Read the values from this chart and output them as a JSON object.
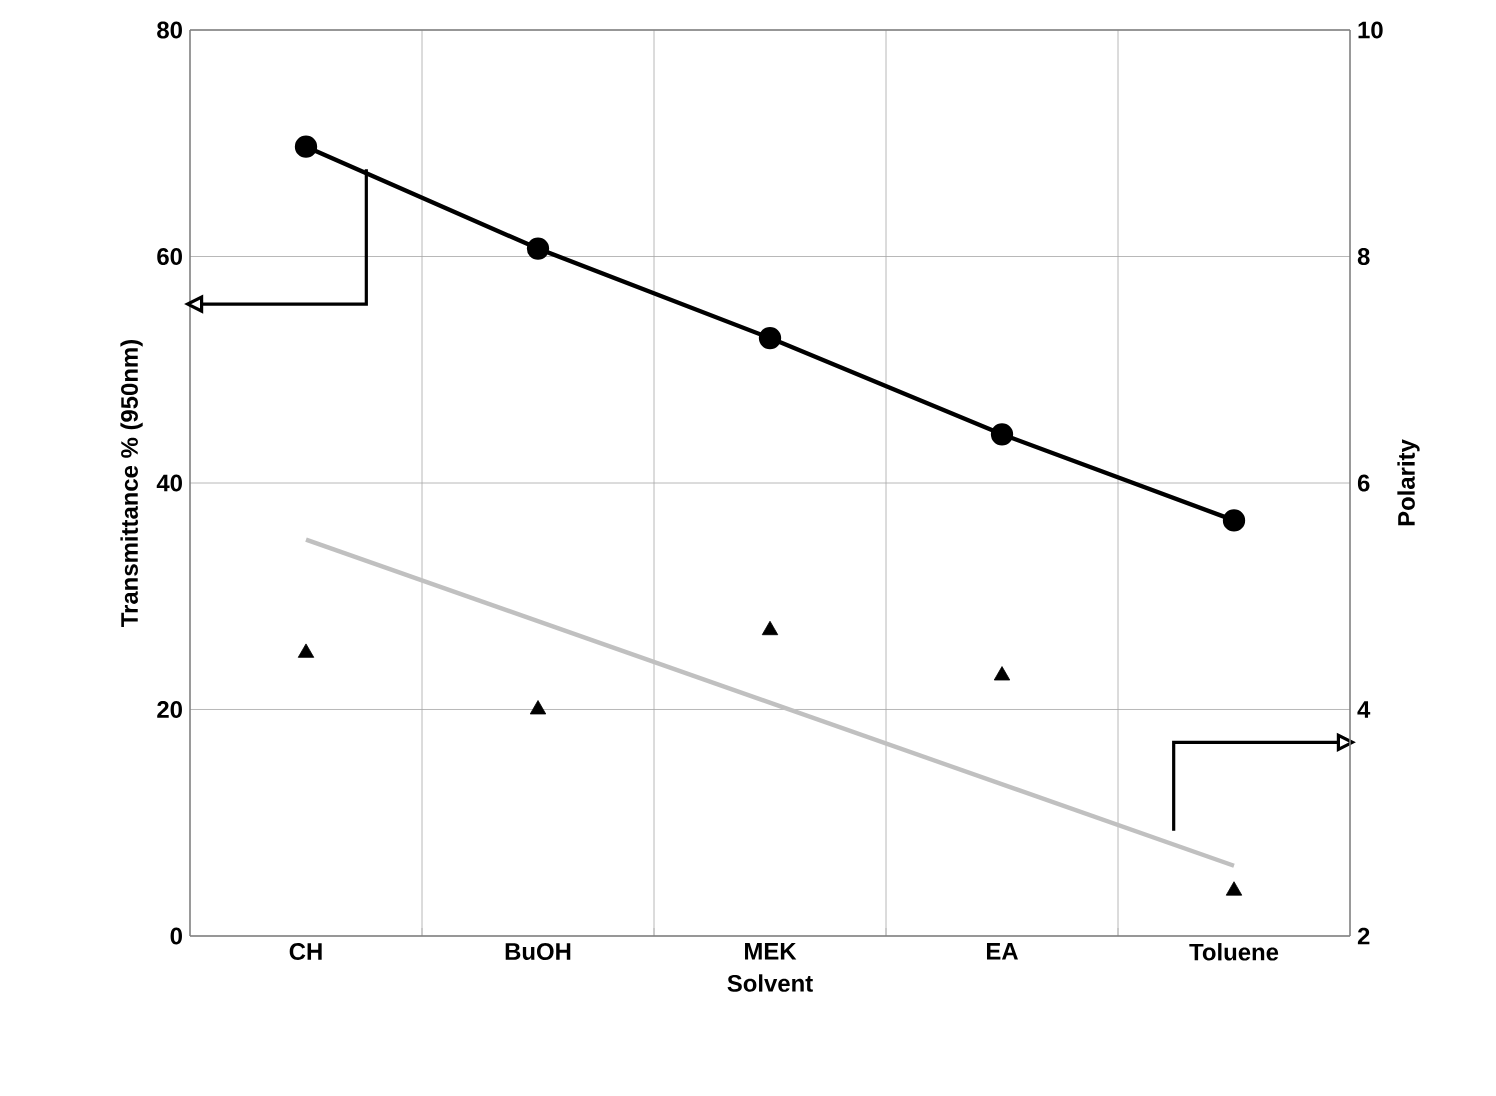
{
  "chart_data": {
    "type": "line",
    "xlabel": "Solvent",
    "ylabel": "Transmittance % (950nm)",
    "y2label": "Polarity",
    "categories": [
      "CH",
      "BuOH",
      "MEK",
      "EA",
      "Toluene"
    ],
    "series": [
      {
        "color": "#000000",
        "marker": "circle",
        "values": [
          69.7,
          60.7,
          52.8,
          44.3,
          36.7
        ]
      },
      {
        "type": "scatter",
        "axis": "y2",
        "color": "#000000",
        "marker": "triangle",
        "values": [
          4.5,
          4.0,
          4.7,
          4.3,
          2.4
        ]
      },
      {
        "type": "line",
        "axis": "y2",
        "color": "#c0c0c0",
        "marker": "none",
        "values": [
          5.5,
          4.78,
          4.06,
          3.34,
          2.62
        ]
      }
    ],
    "ylim": [
      0,
      80
    ],
    "yticks": [
      0,
      20,
      40,
      60,
      80
    ],
    "y2lim": [
      2,
      10
    ],
    "y2ticks": [
      2,
      4,
      6,
      8,
      10
    ],
    "grid": true
  }
}
